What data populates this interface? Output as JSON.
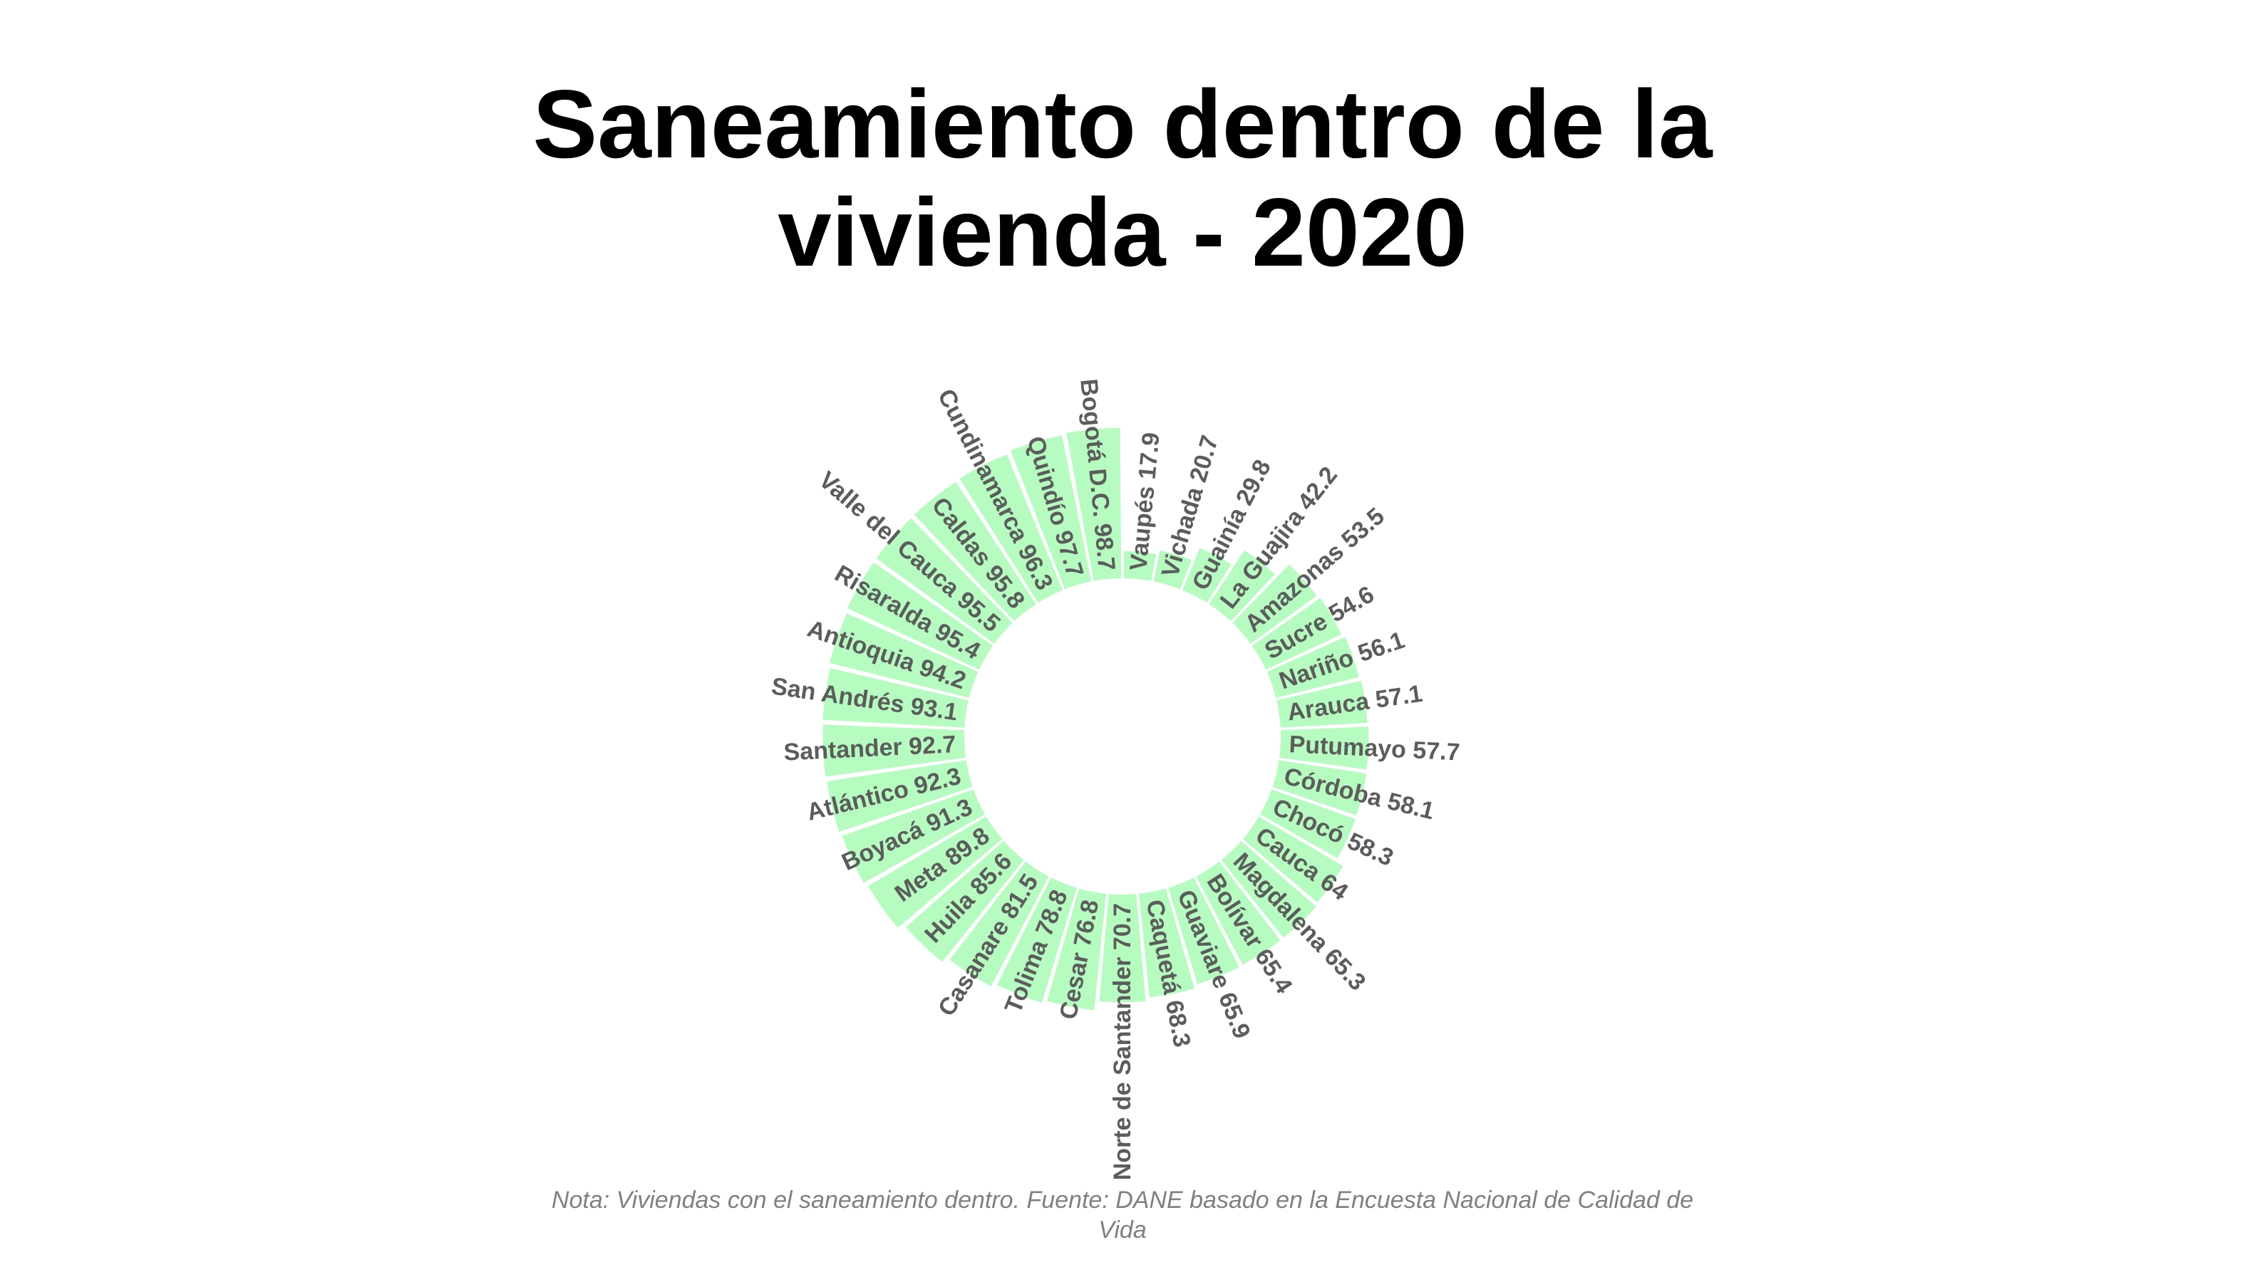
{
  "title_lines": [
    "Saneamiento dentro de la",
    "vivienda - 2020"
  ],
  "caption_lines": [
    "Nota: Viviendas con el saneamiento dentro. Fuente: DANE basado en la Encuesta Nacional de Calidad de",
    "Vida"
  ],
  "colors": {
    "bar_fill": "#b6fcc0",
    "label_text": "#5c5c5c",
    "title_text": "#000000",
    "caption_text": "#808080"
  },
  "chart_data": {
    "type": "bar",
    "layout": "circular",
    "title": "Saneamiento dentro de la vivienda - 2020",
    "grid": false,
    "legend": "none",
    "ylim": [
      0,
      100
    ],
    "categories": [
      "Vaupés",
      "Vichada",
      "Guainía",
      "La Guajira",
      "Amazonas",
      "Sucre",
      "Nariño",
      "Arauca",
      "Putumayo",
      "Córdoba",
      "Chocó",
      "Cauca",
      "Magdalena",
      "Bolívar",
      "Guaviare",
      "Caquetá",
      "Norte de Santander",
      "Cesar",
      "Tolima",
      "Casanare",
      "Huila",
      "Meta",
      "Boyacá",
      "Atlántico",
      "Santander",
      "San Andrés",
      "Antioquia",
      "Risaralda",
      "Valle del Cauca",
      "Caldas",
      "Cundinamarca",
      "Quindío",
      "Bogotá D.C."
    ],
    "values": [
      17.9,
      20.7,
      29.8,
      42.2,
      53.5,
      54.6,
      56.1,
      57.1,
      57.7,
      58.1,
      58.3,
      64,
      65.3,
      65.4,
      65.9,
      68.3,
      70.7,
      76.8,
      78.8,
      81.5,
      85.6,
      89.8,
      91.3,
      92.3,
      92.7,
      93.1,
      94.2,
      95.4,
      95.5,
      95.8,
      96.3,
      97.7,
      98.7
    ]
  }
}
